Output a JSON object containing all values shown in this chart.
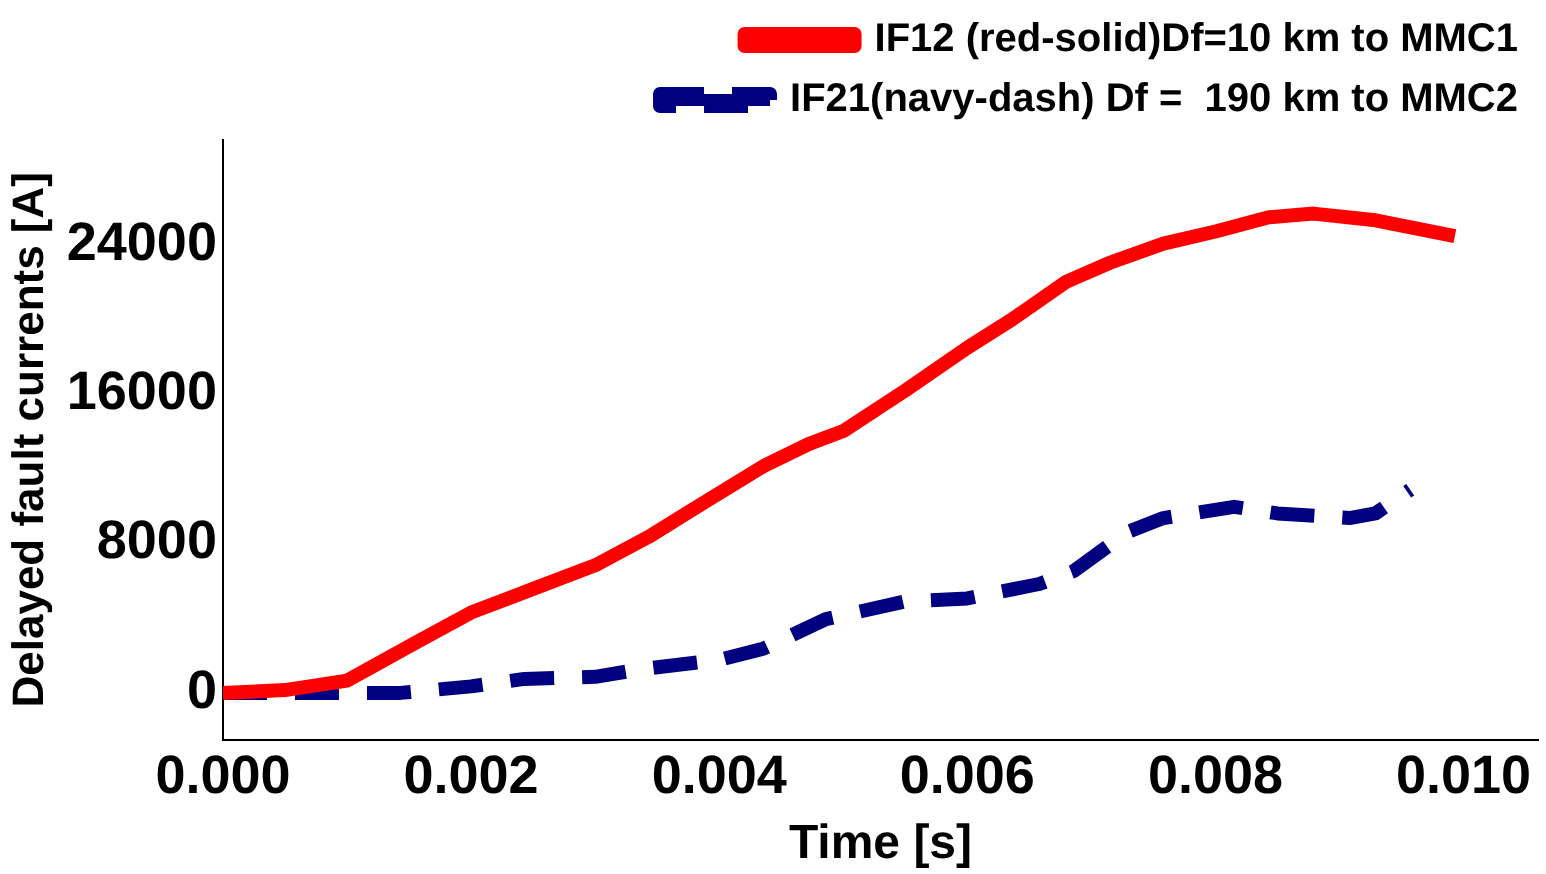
{
  "chart_data": {
    "type": "line",
    "xlabel": "Time [s]",
    "ylabel": "Delayed fault currents [A]",
    "xlim": [
      0,
      0.0106
    ],
    "xticks": [
      {
        "value": 0,
        "label": "0.000"
      },
      {
        "value": 0.002,
        "label": "0.002"
      },
      {
        "value": 0.004,
        "label": "0.004"
      },
      {
        "value": 0.006,
        "label": "0.006"
      },
      {
        "value": 0.008,
        "label": "0.008"
      },
      {
        "value": 0.01,
        "label": "0.010"
      }
    ],
    "ylim": [
      -2500,
      29600
    ],
    "yticks": [
      0,
      8000,
      16000,
      24000
    ],
    "grid": false,
    "legend": "top right",
    "marker": "none",
    "series": [
      {
        "name": "IF12 (red-solid)Df=10 km to MMC1",
        "color": "#ff0000",
        "line_style": "solid",
        "x": [
          0,
          0.0005,
          0.001,
          0.00158,
          0.002,
          0.0025,
          0.003,
          0.00343,
          0.00386,
          0.00436,
          0.00472,
          0.005,
          0.0055,
          0.006,
          0.00636,
          0.0068,
          0.00715,
          0.00758,
          0.008,
          0.00843,
          0.00879,
          0.00929,
          0.00993
        ],
        "values": [
          0,
          150,
          660,
          2780,
          4300,
          5570,
          6830,
          8350,
          10120,
          12150,
          13320,
          14020,
          16190,
          18480,
          19990,
          22020,
          23030,
          24050,
          24700,
          25460,
          25660,
          25300,
          24450
        ]
      },
      {
        "name": "IF21(navy-dash) Df =  190 km to MMC2",
        "color": "#000080",
        "line_style": "dashed",
        "x": [
          0,
          0.00143,
          0.002,
          0.00243,
          0.003,
          0.00336,
          0.004,
          0.00436,
          0.00486,
          0.0055,
          0.006,
          0.00658,
          0.00686,
          0.00729,
          0.00758,
          0.00815,
          0.0085,
          0.00908,
          0.00929,
          0.00957
        ],
        "values": [
          0,
          0,
          350,
          750,
          860,
          1260,
          1770,
          2380,
          3950,
          4900,
          5060,
          5830,
          6530,
          8610,
          9360,
          9960,
          9610,
          9360,
          9610,
          10880
        ]
      }
    ]
  }
}
